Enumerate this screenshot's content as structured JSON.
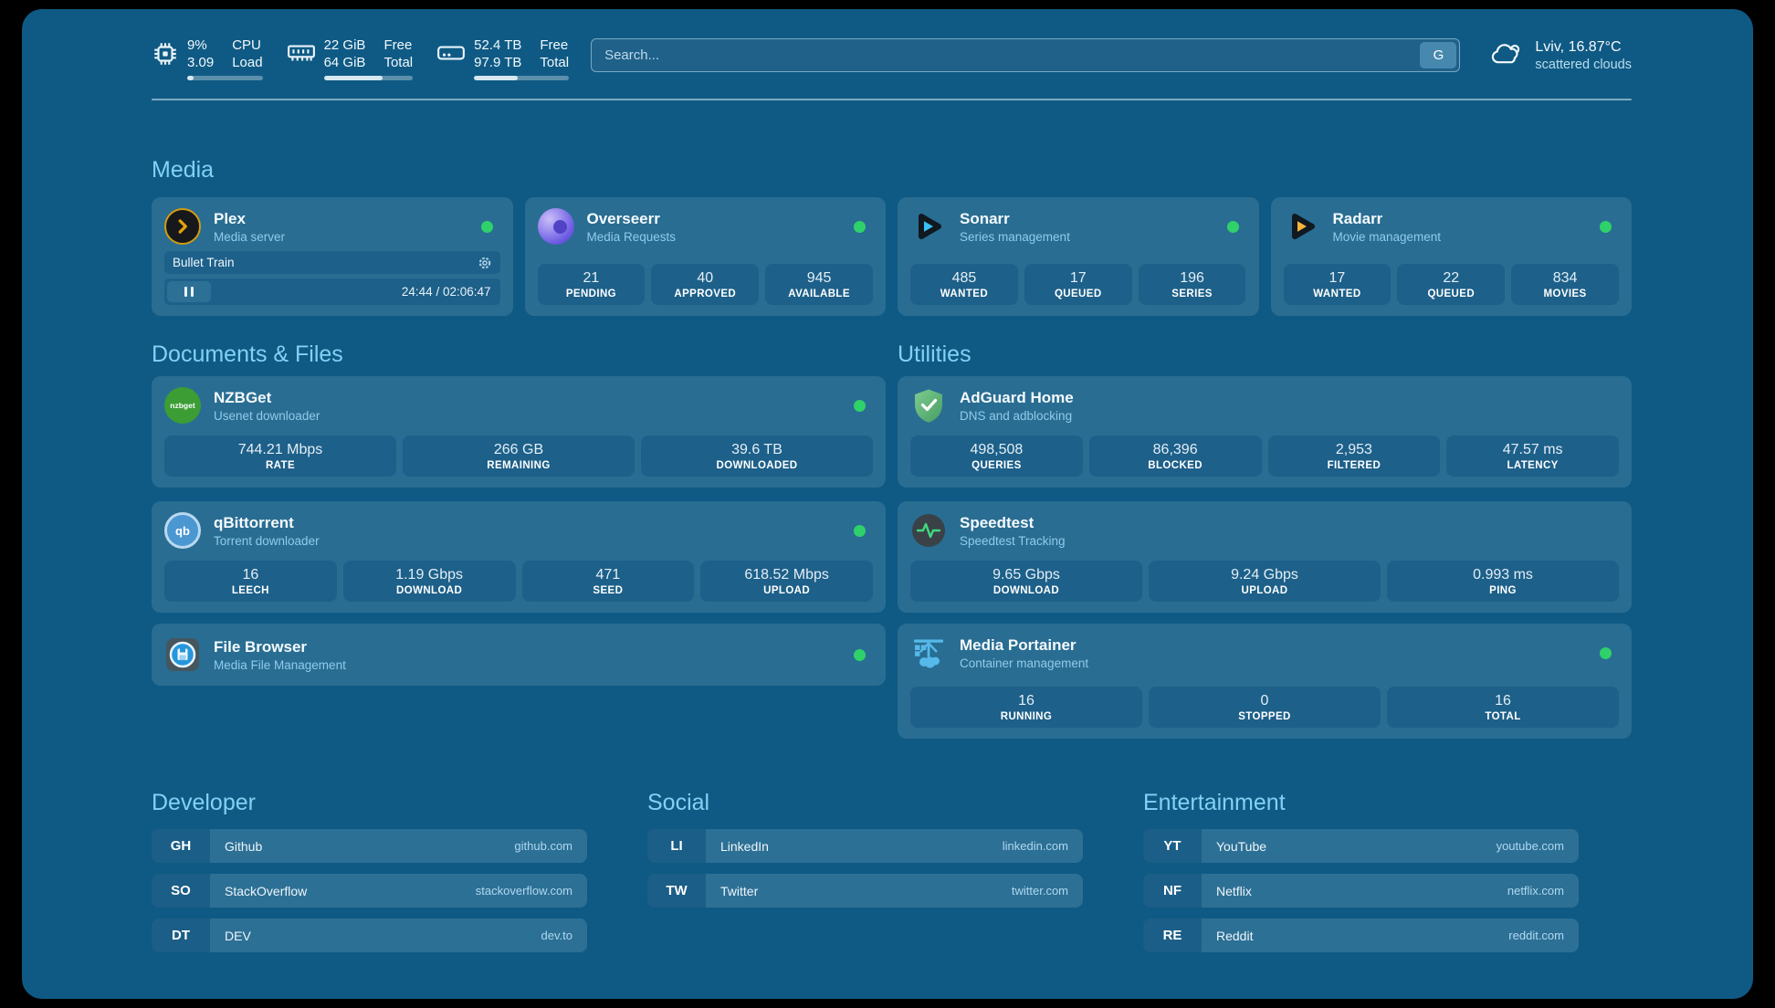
{
  "header": {
    "resources": [
      {
        "icon": "cpu-icon",
        "v1": "9%",
        "v2": "3.09",
        "l1": "CPU",
        "l2": "Load",
        "pct": 9
      },
      {
        "icon": "memory-icon",
        "v1": "22 GiB",
        "v2": "64 GiB",
        "l1": "Free",
        "l2": "Total",
        "pct": 66
      },
      {
        "icon": "disk-icon",
        "v1": "52.4 TB",
        "v2": "97.9 TB",
        "l1": "Free",
        "l2": "Total",
        "pct": 46
      }
    ],
    "search": {
      "placeholder": "Search...",
      "button_label": "G"
    },
    "weather": {
      "location": "Lviv, 16.87°C",
      "condition": "scattered clouds"
    }
  },
  "sections": {
    "media": {
      "title": "Media",
      "plex": {
        "name": "Plex",
        "desc": "Media server",
        "now_playing": "Bullet Train",
        "time": "24:44 / 02:06:47"
      },
      "overseerr": {
        "name": "Overseerr",
        "desc": "Media Requests",
        "stats": [
          {
            "value": "21",
            "label": "PENDING"
          },
          {
            "value": "40",
            "label": "APPROVED"
          },
          {
            "value": "945",
            "label": "AVAILABLE"
          }
        ]
      },
      "sonarr": {
        "name": "Sonarr",
        "desc": "Series management",
        "stats": [
          {
            "value": "485",
            "label": "WANTED"
          },
          {
            "value": "17",
            "label": "QUEUED"
          },
          {
            "value": "196",
            "label": "SERIES"
          }
        ]
      },
      "radarr": {
        "name": "Radarr",
        "desc": "Movie management",
        "stats": [
          {
            "value": "17",
            "label": "WANTED"
          },
          {
            "value": "22",
            "label": "QUEUED"
          },
          {
            "value": "834",
            "label": "MOVIES"
          }
        ]
      }
    },
    "documents": {
      "title": "Documents & Files",
      "nzbget": {
        "name": "NZBGet",
        "desc": "Usenet downloader",
        "stats": [
          {
            "value": "744.21 Mbps",
            "label": "RATE"
          },
          {
            "value": "266 GB",
            "label": "REMAINING"
          },
          {
            "value": "39.6 TB",
            "label": "DOWNLOADED"
          }
        ]
      },
      "qbittorrent": {
        "name": "qBittorrent",
        "desc": "Torrent downloader",
        "stats": [
          {
            "value": "16",
            "label": "LEECH"
          },
          {
            "value": "1.19 Gbps",
            "label": "DOWNLOAD"
          },
          {
            "value": "471",
            "label": "SEED"
          },
          {
            "value": "618.52 Mbps",
            "label": "UPLOAD"
          }
        ]
      },
      "filebrowser": {
        "name": "File Browser",
        "desc": "Media File Management"
      }
    },
    "utilities": {
      "title": "Utilities",
      "adguard": {
        "name": "AdGuard Home",
        "desc": "DNS and adblocking",
        "stats": [
          {
            "value": "498,508",
            "label": "QUERIES"
          },
          {
            "value": "86,396",
            "label": "BLOCKED"
          },
          {
            "value": "2,953",
            "label": "FILTERED"
          },
          {
            "value": "47.57 ms",
            "label": "LATENCY"
          }
        ]
      },
      "speedtest": {
        "name": "Speedtest",
        "desc": "Speedtest Tracking",
        "stats": [
          {
            "value": "9.65 Gbps",
            "label": "DOWNLOAD"
          },
          {
            "value": "9.24 Gbps",
            "label": "UPLOAD"
          },
          {
            "value": "0.993 ms",
            "label": "PING"
          }
        ]
      },
      "portainer": {
        "name": "Media Portainer",
        "desc": "Container management",
        "stats": [
          {
            "value": "16",
            "label": "RUNNING"
          },
          {
            "value": "0",
            "label": "STOPPED"
          },
          {
            "value": "16",
            "label": "TOTAL"
          }
        ]
      }
    }
  },
  "bookmarks": {
    "groups": [
      {
        "title": "Developer",
        "items": [
          {
            "abbr": "GH",
            "name": "Github",
            "url": "github.com"
          },
          {
            "abbr": "SO",
            "name": "StackOverflow",
            "url": "stackoverflow.com"
          },
          {
            "abbr": "DT",
            "name": "DEV",
            "url": "dev.to"
          }
        ]
      },
      {
        "title": "Social",
        "items": [
          {
            "abbr": "LI",
            "name": "LinkedIn",
            "url": "linkedin.com"
          },
          {
            "abbr": "TW",
            "name": "Twitter",
            "url": "twitter.com"
          }
        ]
      },
      {
        "title": "Entertainment",
        "items": [
          {
            "abbr": "YT",
            "name": "YouTube",
            "url": "youtube.com"
          },
          {
            "abbr": "NF",
            "name": "Netflix",
            "url": "netflix.com"
          },
          {
            "abbr": "RE",
            "name": "Reddit",
            "url": "reddit.com"
          }
        ]
      }
    ]
  },
  "colors": {
    "status_online": "#2fd16a",
    "heading": "#82d1f5"
  }
}
